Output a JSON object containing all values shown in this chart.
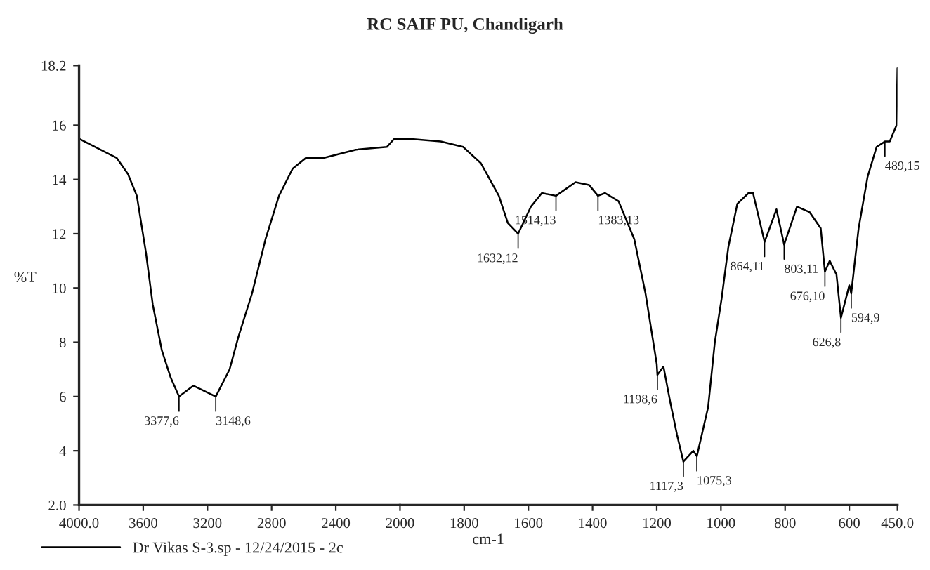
{
  "chart_data": [
    {
      "type": "line",
      "ylabel": "%T",
      "series": [
        {
          "name": "Dr Vikas S-3.sp - 12/24/2015 - 2c",
          "color": "#000000",
          "x": [
            4000,
            3766,
            3695,
            3640,
            3583,
            3541,
            3484,
            3429,
            3377,
            3288,
            3148,
            3062,
            3007,
            2922,
            2838,
            2754,
            2669,
            2585,
            2472,
            2275,
            2082,
            2036,
            2000
          ],
          "values": [
            15.5,
            14.8,
            14.2,
            13.4,
            11.3,
            9.4,
            7.7,
            6.7,
            6.0,
            6.4,
            6.0,
            7.0,
            8.2,
            9.8,
            11.8,
            13.4,
            14.4,
            14.8,
            14.8,
            15.1,
            15.2,
            15.5,
            15.5
          ]
        }
      ],
      "xlim": [
        4000,
        2000
      ],
      "xticks": [
        {
          "value": 4000,
          "label": "4000.0"
        },
        3600,
        3200,
        2800,
        2400,
        2000
      ],
      "ylim": [
        2.0,
        18.2
      ],
      "yticks": [
        {
          "value": 2.0,
          "label": "2.0"
        },
        4,
        6,
        8,
        10,
        12,
        14,
        16,
        {
          "value": 18.2,
          "label": "18.2"
        }
      ],
      "legend": "bottom left",
      "annotations": [
        {
          "text": "3377,6",
          "x": 3377,
          "y": 6.0
        },
        {
          "text": "3148,6",
          "x": 3148,
          "y": 6.0
        }
      ]
    },
    {
      "type": "line",
      "title": "RC SAIF PU, Chandigarh",
      "xlabel": "cm-1",
      "series": [
        {
          "color": "#000000",
          "x": [
            2000,
            1971,
            1873,
            1803,
            1748,
            1692,
            1664,
            1632,
            1592,
            1558,
            1514,
            1453,
            1411,
            1383,
            1361,
            1319,
            1270,
            1235,
            1200,
            1198,
            1179,
            1158,
            1137,
            1117,
            1086,
            1075,
            1040,
            1019,
            998,
            977,
            949,
            914,
            900,
            864,
            827,
            803,
            763,
            724,
            689,
            676,
            661,
            640,
            626,
            600,
            594,
            571,
            543,
            515,
            489,
            474,
            453,
            450
          ],
          "values": [
            15.5,
            15.5,
            15.4,
            15.2,
            14.6,
            13.4,
            12.4,
            12.0,
            13.0,
            13.5,
            13.4,
            13.9,
            13.8,
            13.4,
            13.5,
            13.2,
            11.8,
            9.8,
            7.2,
            6.8,
            7.1,
            5.8,
            4.6,
            3.6,
            4.0,
            3.8,
            5.6,
            8.0,
            9.6,
            11.5,
            13.1,
            13.5,
            13.5,
            11.7,
            12.9,
            11.6,
            13.0,
            12.8,
            12.2,
            10.6,
            11.0,
            10.5,
            8.9,
            10.1,
            9.8,
            12.2,
            14.1,
            15.2,
            15.4,
            15.4,
            16.0,
            18.1
          ]
        }
      ],
      "xlim": [
        2000,
        450
      ],
      "xticks": [
        1800,
        1600,
        1400,
        1200,
        1000,
        800,
        600,
        {
          "value": 450,
          "label": "450.0"
        }
      ],
      "ylim": [
        2.0,
        18.2
      ],
      "tick_labels": "x",
      "annotations": [
        {
          "text": "1632,12",
          "x": 1632,
          "y": 12.0
        },
        {
          "text": "1514,13",
          "x": 1514,
          "y": 13.4
        },
        {
          "text": "1383,13",
          "x": 1383,
          "y": 13.4
        },
        {
          "text": "1198,6",
          "x": 1198,
          "y": 6.8
        },
        {
          "text": "1117,3",
          "x": 1117,
          "y": 3.6
        },
        {
          "text": "1075,3",
          "x": 1075,
          "y": 3.8
        },
        {
          "text": "864,11",
          "x": 864,
          "y": 11.7
        },
        {
          "text": "803,11",
          "x": 803,
          "y": 11.6
        },
        {
          "text": "676,10",
          "x": 676,
          "y": 10.6
        },
        {
          "text": "626,8",
          "x": 626,
          "y": 8.9
        },
        {
          "text": "594,9",
          "x": 594,
          "y": 9.8
        },
        {
          "text": "489,15",
          "x": 489,
          "y": 15.4
        }
      ]
    }
  ]
}
